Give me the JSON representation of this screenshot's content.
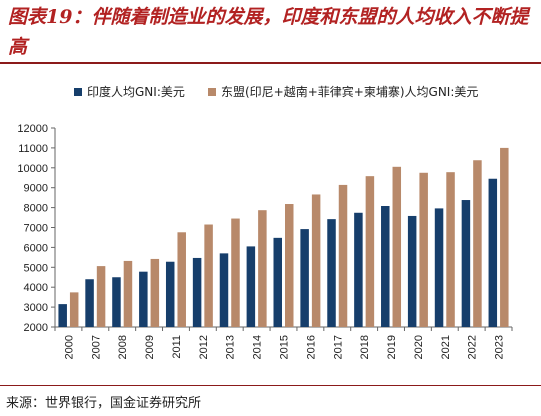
{
  "title": "图表19：伴随着制造业的发展，印度和东盟的人均收入不断提高",
  "source": "来源：世界银行，国金证券研究所",
  "colors": {
    "india": "#163e6b",
    "asean": "#b8896a",
    "accent": "#b22222"
  },
  "chart_data": {
    "type": "bar",
    "title": "",
    "xlabel": "",
    "ylabel": "",
    "ylim": [
      2000,
      12000
    ],
    "yticks": [
      2000,
      3000,
      4000,
      5000,
      6000,
      7000,
      8000,
      9000,
      10000,
      11000,
      12000
    ],
    "grid": false,
    "legend_position": "top",
    "categories": [
      "2000",
      "2007",
      "2008",
      "2009",
      "2011",
      "2012",
      "2013",
      "2014",
      "2015",
      "2016",
      "2017",
      "2018",
      "2019",
      "2020",
      "2021",
      "2022",
      "2023"
    ],
    "series": [
      {
        "name": "印度人均GNI:美元",
        "values": [
          3150,
          4400,
          4500,
          4780,
          5280,
          5470,
          5700,
          6050,
          6480,
          6920,
          7420,
          7740,
          8080,
          7580,
          7960,
          8380,
          9450
        ]
      },
      {
        "name": "东盟(印尼+越南+菲律宾+柬埔寨)人均GNI:美元",
        "values": [
          3740,
          5060,
          5320,
          5420,
          6760,
          7150,
          7450,
          7870,
          8180,
          8660,
          9140,
          9580,
          10050,
          9750,
          9780,
          10380,
          11000
        ]
      }
    ]
  }
}
